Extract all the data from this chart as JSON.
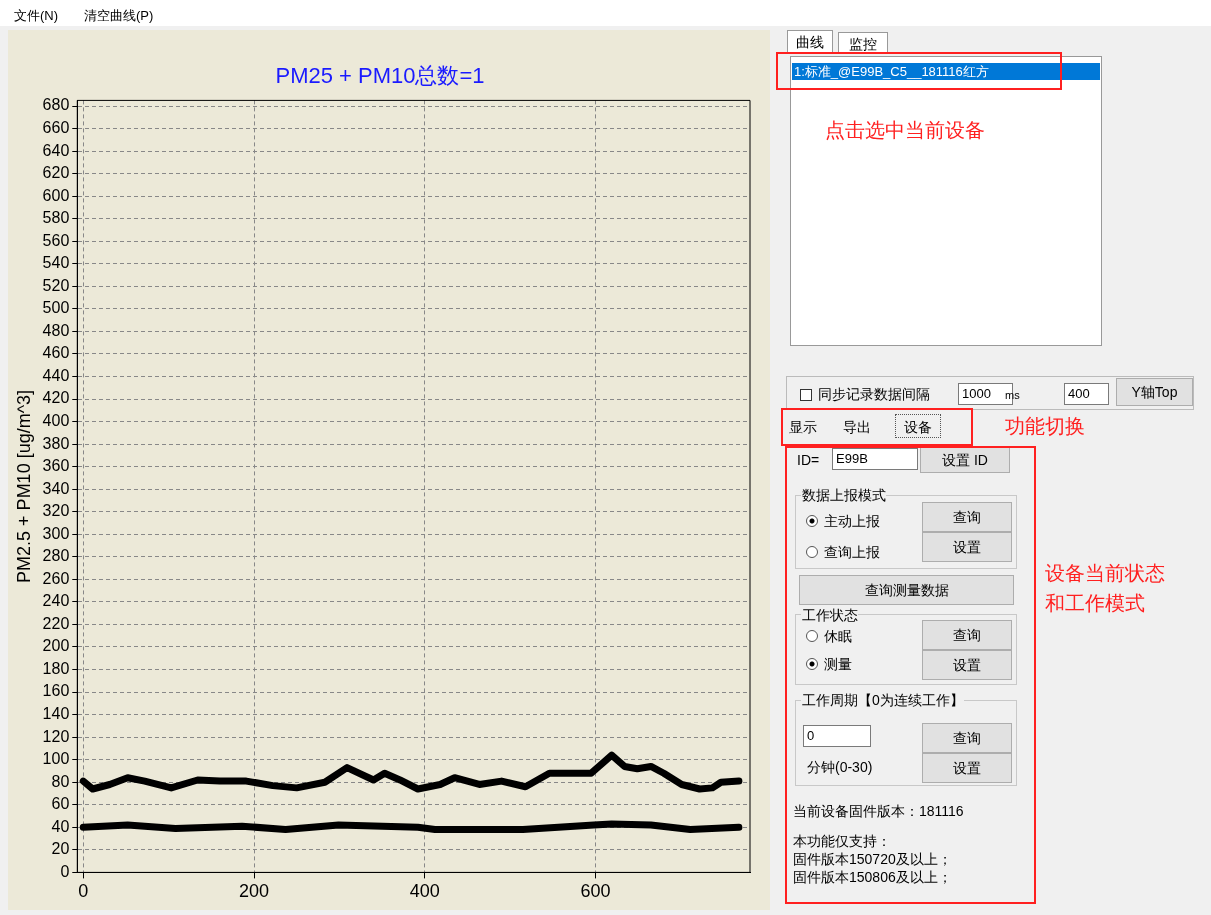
{
  "chart_data": {
    "type": "line",
    "title": "PM25 + PM10总数=1",
    "ylabel": "PM2.5 + PM10 [ug/m^3]",
    "xlim": [
      -7,
      781
    ],
    "ylim": [
      0,
      685
    ],
    "xticks": [
      0,
      200,
      400,
      600
    ],
    "yticks": [
      0,
      20,
      40,
      60,
      80,
      100,
      120,
      140,
      160,
      180,
      200,
      220,
      240,
      260,
      280,
      300,
      320,
      340,
      360,
      380,
      400,
      420,
      440,
      460,
      480,
      500,
      520,
      540,
      560,
      580,
      600,
      620,
      640,
      660,
      680
    ],
    "grid": true,
    "series": [
      {
        "color": "#000000",
        "x": [
          0,
          11,
          31,
          52,
          72,
          103,
          134,
          160,
          191,
          222,
          250,
          283,
          309,
          340,
          353,
          371,
          392,
          418,
          435,
          464,
          490,
          518,
          546,
          582,
          595,
          619,
          634,
          649,
          665,
          680,
          701,
          722,
          737,
          747,
          768
        ],
        "values": [
          81,
          74,
          78,
          84,
          81,
          75,
          82,
          81,
          81,
          77,
          75,
          80,
          93,
          82,
          88,
          82,
          74,
          78,
          84,
          78,
          81,
          76,
          88,
          88,
          88,
          104,
          94,
          92,
          94,
          88,
          78,
          74,
          75,
          80,
          81
        ]
      },
      {
        "color": "#000000",
        "x": [
          0,
          52,
          108,
          186,
          237,
          299,
          392,
          412,
          515,
          598,
          619,
          665,
          711,
          768
        ],
        "values": [
          40,
          42,
          39,
          41,
          38,
          42,
          40,
          38,
          38,
          42,
          43,
          42,
          38,
          40
        ]
      }
    ],
    "annotations": [
      "文件(N)",
      "清空曲线(P)",
      "曲线",
      "监控",
      "1:标准_@E99B_C5__181116红方",
      "点击选中当前设备",
      "同步记录数据间隔",
      "1000",
      "ms",
      "400",
      "Y轴Top",
      "显示",
      "导出",
      "设备",
      "功能切换",
      "ID=",
      "E99B",
      "设置 ID",
      "数据上报模式",
      "主动上报",
      "查询上报",
      "查询",
      "设置",
      "查询测量数据",
      "工作状态",
      "休眠",
      "测量",
      "查询",
      "设置",
      "工作周期【0为连续工作】",
      "0",
      "分钟(0-30)",
      "查询",
      "设置",
      "当前设备固件版本：181116",
      "本功能仅支持：",
      "固件版本150720及以上；",
      "固件版本150806及以上；",
      "设备当前状态",
      "和工作模式"
    ]
  }
}
